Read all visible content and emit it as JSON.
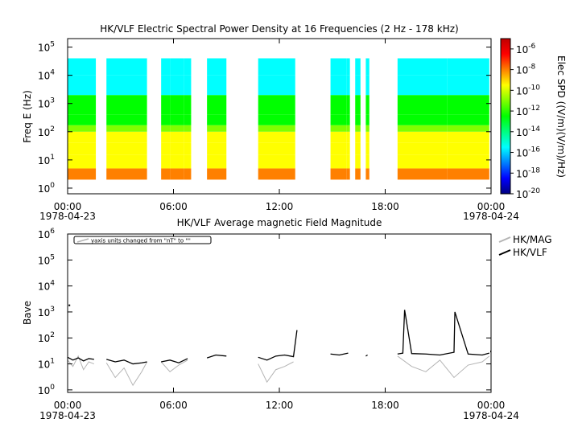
{
  "chart_data": [
    {
      "type": "heatmap",
      "title": "HK/VLF  Electric Spectral Power Density at 16 Frequencies (2 Hz - 178 kHz)",
      "ylabel": "Freq E (Hz)",
      "yscale": "log",
      "ylim": [
        0.63,
        200000
      ],
      "y_ticks": [
        {
          "base": "10",
          "exp": "0"
        },
        {
          "base": "10",
          "exp": "1"
        },
        {
          "base": "10",
          "exp": "2"
        },
        {
          "base": "10",
          "exp": "3"
        },
        {
          "base": "10",
          "exp": "4"
        },
        {
          "base": "10",
          "exp": "5"
        }
      ],
      "x_ticks": [
        "00:00",
        "06:00",
        "12:00",
        "18:00",
        "00:00"
      ],
      "x_dates": {
        "start": "1978-04-23",
        "end": "1978-04-24"
      },
      "xlim_hours": [
        0,
        24
      ],
      "frequency_band_hz": [
        2,
        40000
      ],
      "data_coverage_hours": [
        [
          0.0,
          1.6
        ],
        [
          2.2,
          4.5
        ],
        [
          5.3,
          5.8
        ],
        [
          5.8,
          6.6
        ],
        [
          6.6,
          7.0
        ],
        [
          7.9,
          9.0
        ],
        [
          10.8,
          12.0
        ],
        [
          12.0,
          12.9
        ],
        [
          14.9,
          15.8
        ],
        [
          15.8,
          16.0
        ],
        [
          16.3,
          16.6
        ],
        [
          16.9,
          17.1
        ],
        [
          18.7,
          21.5
        ],
        [
          21.5,
          23.9
        ]
      ],
      "colorbar": {
        "label": "Elec SPD ((V/m)(V/m)/Hz)",
        "scale": "log",
        "range_exp": [
          -20,
          -5
        ],
        "ticks": [
          {
            "base": "10",
            "exp": "-6"
          },
          {
            "base": "10",
            "exp": "-8"
          },
          {
            "base": "10",
            "exp": "-10"
          },
          {
            "base": "10",
            "exp": "-12"
          },
          {
            "base": "10",
            "exp": "-14"
          },
          {
            "base": "10",
            "exp": "-16"
          },
          {
            "base": "10",
            "exp": "-18"
          },
          {
            "base": "10",
            "exp": "-20"
          }
        ],
        "colors": [
          "#000080",
          "#0000ff",
          "#0080ff",
          "#00ffff",
          "#00ff80",
          "#00ff00",
          "#80ff00",
          "#ffff00",
          "#ff8000",
          "#ff0000",
          "#c00000"
        ]
      },
      "typical_levels_exp": {
        "2-5 Hz": -8,
        "10-40 Hz": -9.5,
        "100-150 Hz": -10.5,
        "200-2000 Hz": -13,
        "2-10 kHz": -15,
        "10-40 kHz": -16
      }
    },
    {
      "type": "line",
      "title": "HK/VLF  Average magnetic Field Magnitude",
      "ylabel": "Bave",
      "yscale": "log",
      "ylim": [
        0.8,
        1000000
      ],
      "y_ticks": [
        {
          "base": "10",
          "exp": "0"
        },
        {
          "base": "10",
          "exp": "1"
        },
        {
          "base": "10",
          "exp": "2"
        },
        {
          "base": "10",
          "exp": "3"
        },
        {
          "base": "10",
          "exp": "4"
        },
        {
          "base": "10",
          "exp": "5"
        },
        {
          "base": "10",
          "exp": "6"
        }
      ],
      "x_ticks": [
        "00:00",
        "06:00",
        "12:00",
        "18:00",
        "00:00"
      ],
      "x_dates": {
        "start": "1978-04-23",
        "end": "1978-04-24"
      },
      "xlim_hours": [
        0,
        24
      ],
      "annotation": "yaxis units changed from \"nT\" to \"\"",
      "legend_position": "right",
      "series": [
        {
          "name": "HK/MAG",
          "color": "#b4b4b4",
          "segments": [
            {
              "x": [
                0.0,
                0.3,
                0.6,
                0.9,
                1.2,
                1.5
              ],
              "y": [
                14,
                8,
                20,
                6,
                12,
                10
              ]
            },
            {
              "x": [
                2.2,
                2.7,
                3.2,
                3.7,
                4.2,
                4.5
              ],
              "y": [
                11,
                3,
                7,
                1.5,
                5,
                12
              ]
            },
            {
              "x": [
                5.3,
                5.8,
                6.3,
                6.8
              ],
              "y": [
                12,
                5,
                9,
                14
              ]
            },
            {
              "x": [
                10.8,
                11.3,
                11.8,
                12.3,
                12.8
              ],
              "y": [
                10,
                2,
                6,
                8,
                12
              ]
            },
            {
              "x": [
                18.7,
                19.5,
                20.3,
                21.1,
                21.9,
                22.7,
                23.5,
                23.9
              ],
              "y": [
                20,
                8,
                5,
                14,
                3,
                9,
                12,
                20
              ]
            }
          ]
        },
        {
          "name": "HK/VLF",
          "color": "#000000",
          "segments": [
            {
              "x": [
                0.0,
                0.3,
                0.6,
                0.9,
                1.2,
                1.5
              ],
              "y": [
                18,
                14,
                17,
                13,
                16,
                15
              ]
            },
            {
              "x": [
                2.2,
                2.7,
                3.2,
                3.7,
                4.2,
                4.5
              ],
              "y": [
                15,
                12,
                14,
                10,
                11,
                12
              ]
            },
            {
              "x": [
                5.3,
                5.8,
                6.3,
                6.8
              ],
              "y": [
                12,
                14,
                11,
                16
              ]
            },
            {
              "x": [
                7.9,
                8.4,
                9.0
              ],
              "y": [
                17,
                22,
                20
              ]
            },
            {
              "x": [
                10.8,
                11.3,
                11.8,
                12.3,
                12.8,
                13.0
              ],
              "y": [
                18,
                14,
                20,
                22,
                19,
                200
              ]
            },
            {
              "x": [
                14.9,
                15.4,
                15.9
              ],
              "y": [
                24,
                22,
                26
              ]
            },
            {
              "x": [
                16.9,
                17.0
              ],
              "y": [
                20,
                22
              ]
            },
            {
              "x": [
                18.7,
                19.0,
                19.1,
                19.5,
                20.3,
                21.1,
                21.9,
                21.95,
                22.7,
                23.5,
                23.9
              ],
              "y": [
                24,
                26,
                1200,
                25,
                24,
                22,
                28,
                1000,
                24,
                22,
                26
              ]
            }
          ]
        }
      ],
      "isolated_points": [
        {
          "x": 0.1,
          "y": 1800,
          "series": "HK/VLF"
        },
        {
          "x": 24.0,
          "y": 30,
          "series": "HK/VLF"
        }
      ]
    }
  ]
}
